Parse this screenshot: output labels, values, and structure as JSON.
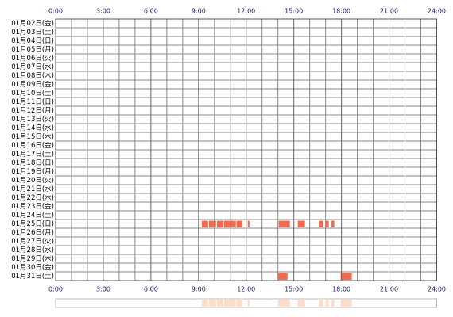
{
  "chart_data": {
    "type": "timeline",
    "categories": [
      "01月02日(金)",
      "01月03日(土)",
      "01月04日(日)",
      "01月05日(月)",
      "01月06日(火)",
      "01月07日(水)",
      "01月08日(木)",
      "01月09日(金)",
      "01月10日(土)",
      "01月11日(日)",
      "01月12日(月)",
      "01月13日(火)",
      "01月14日(水)",
      "01月15日(木)",
      "01月16日(金)",
      "01月17日(土)",
      "01月18日(日)",
      "01月19日(月)",
      "01月20日(火)",
      "01月21日(水)",
      "01月22日(木)",
      "01月23日(金)",
      "01月24日(土)",
      "01月25日(日)",
      "01月26日(月)",
      "01月27日(火)",
      "01月28日(水)",
      "01月29日(木)",
      "01月30日(金)",
      "01月31日(土)"
    ],
    "values": [
      [],
      [],
      [],
      [],
      [],
      [],
      [],
      [],
      [],
      [],
      [],
      [],
      [],
      [],
      [],
      [],
      [],
      [],
      [],
      [],
      [],
      [],
      [],
      [
        [
          9.2,
          9.6
        ],
        [
          9.65,
          10.1
        ],
        [
          10.15,
          10.55
        ],
        [
          10.6,
          11.35
        ],
        [
          11.4,
          11.75
        ],
        [
          12.1,
          12.2
        ],
        [
          14.05,
          14.75
        ],
        [
          15.25,
          15.7
        ],
        [
          16.6,
          16.85
        ],
        [
          17.0,
          17.2
        ],
        [
          17.35,
          17.55
        ]
      ],
      [],
      [],
      [],
      [],
      [],
      [
        [
          14.0,
          14.6
        ],
        [
          17.95,
          18.65
        ]
      ]
    ],
    "xlim": [
      0,
      24
    ],
    "xticks": [
      {
        "value": 0,
        "label": "0:00"
      },
      {
        "value": 3,
        "label": "3:00"
      },
      {
        "value": 6,
        "label": "6:00"
      },
      {
        "value": 9,
        "label": "9:00"
      },
      {
        "value": 12,
        "label": "12:00"
      },
      {
        "value": 15,
        "label": "15:00"
      },
      {
        "value": 18,
        "label": "18:00"
      },
      {
        "value": 21,
        "label": "21:00"
      },
      {
        "value": 24,
        "label": "24:00"
      }
    ],
    "minor_xticks": [
      1,
      2,
      4,
      5,
      7,
      8,
      10,
      11,
      13,
      14,
      16,
      17,
      19,
      20,
      22,
      23
    ],
    "grid": true,
    "color": "#f26b4f",
    "summary_color": "#fddcc8"
  }
}
